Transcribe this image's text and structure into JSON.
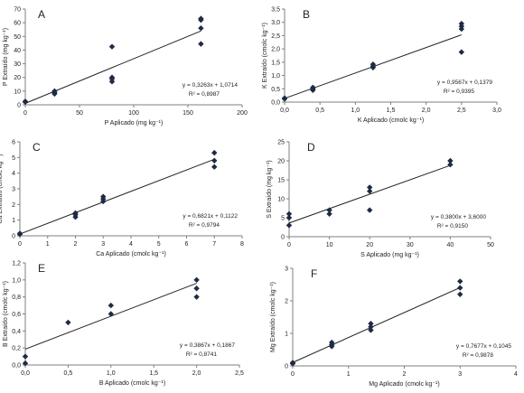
{
  "chart_data": [
    {
      "type": "scatter",
      "panel": "A",
      "xlabel": "P Aplicado (mg kg⁻¹)",
      "ylabel": "P Extraído (mg kg⁻¹)",
      "xlim": [
        0,
        200
      ],
      "ylim": [
        0,
        70
      ],
      "xticks": [
        "0",
        "50",
        "100",
        "150",
        "200"
      ],
      "yticks": [
        "0",
        "10",
        "20",
        "30",
        "40",
        "50",
        "60",
        "70"
      ],
      "points": [
        [
          0,
          2
        ],
        [
          0,
          2.5
        ],
        [
          27,
          8
        ],
        [
          27,
          9
        ],
        [
          27,
          10
        ],
        [
          80,
          17
        ],
        [
          80,
          19
        ],
        [
          80,
          20
        ],
        [
          80,
          42.5
        ],
        [
          162,
          44.5
        ],
        [
          162,
          56
        ],
        [
          162,
          62
        ],
        [
          162,
          63
        ]
      ],
      "fit": {
        "slope": 0.3263,
        "intercept": 1.0714,
        "x_range": [
          0,
          162
        ]
      },
      "equation": "y = 0,3263x + 1,0714",
      "r2": "R² = 0,8987"
    },
    {
      "type": "scatter",
      "panel": "B",
      "xlabel": "K Aplicado (cmolc kg⁻¹)",
      "ylabel": "K Extraído (cmolc kg⁻¹)",
      "xlim": [
        0,
        3
      ],
      "ylim": [
        0,
        3.5
      ],
      "xticks": [
        "0,0",
        "0,5",
        "1,0",
        "1,5",
        "2,0",
        "2,5",
        "3,0"
      ],
      "yticks": [
        "0,0",
        "0,5",
        "1,0",
        "1,5",
        "2,0",
        "2,5",
        "3,0",
        "3,5"
      ],
      "points": [
        [
          0,
          0.12
        ],
        [
          0,
          0.15
        ],
        [
          0.4,
          0.45
        ],
        [
          0.4,
          0.5
        ],
        [
          0.4,
          0.55
        ],
        [
          1.25,
          1.3
        ],
        [
          1.25,
          1.35
        ],
        [
          1.25,
          1.42
        ],
        [
          2.5,
          1.88
        ],
        [
          2.5,
          2.75
        ],
        [
          2.5,
          2.85
        ],
        [
          2.5,
          2.95
        ]
      ],
      "fit": {
        "slope": 0.9567,
        "intercept": 0.1379,
        "x_range": [
          0,
          2.5
        ]
      },
      "equation": "y = 0,9567x + 0,1379",
      "r2": "R² = 0,9395"
    },
    {
      "type": "scatter",
      "panel": "C",
      "xlabel": "Ca Aplicado (cmolc kg⁻¹)",
      "ylabel": "Ca Extraído (cmolc kg⁻¹)",
      "xlim": [
        0,
        8
      ],
      "ylim": [
        0,
        6
      ],
      "xticks": [
        "0",
        "1",
        "2",
        "3",
        "4",
        "5",
        "6",
        "7",
        "8"
      ],
      "yticks": [
        "0",
        "1",
        "2",
        "3",
        "4",
        "5",
        "6"
      ],
      "points": [
        [
          0,
          0.1
        ],
        [
          0,
          0.15
        ],
        [
          2,
          1.2
        ],
        [
          2,
          1.35
        ],
        [
          2,
          1.45
        ],
        [
          3,
          2.2
        ],
        [
          3,
          2.35
        ],
        [
          3,
          2.5
        ],
        [
          7,
          4.4
        ],
        [
          7,
          4.8
        ],
        [
          7,
          5.3
        ]
      ],
      "fit": {
        "slope": 0.6821,
        "intercept": 0.1122,
        "x_range": [
          0,
          7
        ]
      },
      "equation": "y = 0,6821x + 0,1122",
      "r2": "R² = 0,9794"
    },
    {
      "type": "scatter",
      "panel": "D",
      "xlabel": "S Aplicado (mg kg⁻¹)",
      "ylabel": "S Extraído (mg kg⁻¹)",
      "xlim": [
        0,
        50
      ],
      "ylim": [
        0,
        25
      ],
      "xticks": [
        "0",
        "10",
        "20",
        "30",
        "40",
        "50"
      ],
      "yticks": [
        "0",
        "5",
        "10",
        "15",
        "20",
        "25"
      ],
      "points": [
        [
          0,
          3
        ],
        [
          0,
          5
        ],
        [
          0,
          6
        ],
        [
          10,
          6
        ],
        [
          10,
          7
        ],
        [
          20,
          7
        ],
        [
          20,
          12
        ],
        [
          20,
          13
        ],
        [
          40,
          19
        ],
        [
          40,
          20
        ]
      ],
      "fit": {
        "slope": 0.38,
        "intercept": 3.6,
        "x_range": [
          0,
          40
        ]
      },
      "equation": "y = 0,3800x + 3,6000",
      "r2": "R² = 0,9150"
    },
    {
      "type": "scatter",
      "panel": "E",
      "xlabel": "B Aplicado (cmolc kg⁻¹)",
      "ylabel": "B Extraído (cmolc kg⁻¹)",
      "xlim": [
        0,
        2.5
      ],
      "ylim": [
        0,
        1.2
      ],
      "xticks": [
        "0,0",
        "0,5",
        "1,0",
        "1,5",
        "2,0",
        "2,5"
      ],
      "yticks": [
        "0,0",
        "0,2",
        "0,4",
        "0,6",
        "0,8",
        "1,0",
        "1,2"
      ],
      "points": [
        [
          0,
          0.02
        ],
        [
          0,
          0.1
        ],
        [
          0.5,
          0.5
        ],
        [
          1,
          0.6
        ],
        [
          1,
          0.7
        ],
        [
          2,
          0.8
        ],
        [
          2,
          0.9
        ],
        [
          2,
          1.0
        ]
      ],
      "fit": {
        "slope": 0.3867,
        "intercept": 0.1867,
        "x_range": [
          0,
          2
        ]
      },
      "equation": "y = 0,3867x + 0,1867",
      "r2": "R² = 0,8741"
    },
    {
      "type": "scatter",
      "panel": "F",
      "xlabel": "Mg Aplicado (cmolc kg⁻¹)",
      "ylabel": "Mg Extraído (cmolc kg⁻¹)",
      "xlim": [
        0,
        4
      ],
      "ylim": [
        0,
        3
      ],
      "xticks": [
        "0",
        "1",
        "2",
        "3",
        "4"
      ],
      "yticks": [
        "0",
        "1",
        "2",
        "3"
      ],
      "points": [
        [
          0,
          0.07
        ],
        [
          0,
          0.1
        ],
        [
          0.7,
          0.6
        ],
        [
          0.7,
          0.65
        ],
        [
          0.7,
          0.72
        ],
        [
          1.4,
          1.1
        ],
        [
          1.4,
          1.2
        ],
        [
          1.4,
          1.3
        ],
        [
          3,
          2.2
        ],
        [
          3,
          2.4
        ],
        [
          3,
          2.6
        ]
      ],
      "fit": {
        "slope": 0.7677,
        "intercept": 0.1045,
        "x_range": [
          0,
          3
        ]
      },
      "equation": "y = 0,7677x + 0,1045",
      "r2": "R² = 0,9878"
    }
  ]
}
